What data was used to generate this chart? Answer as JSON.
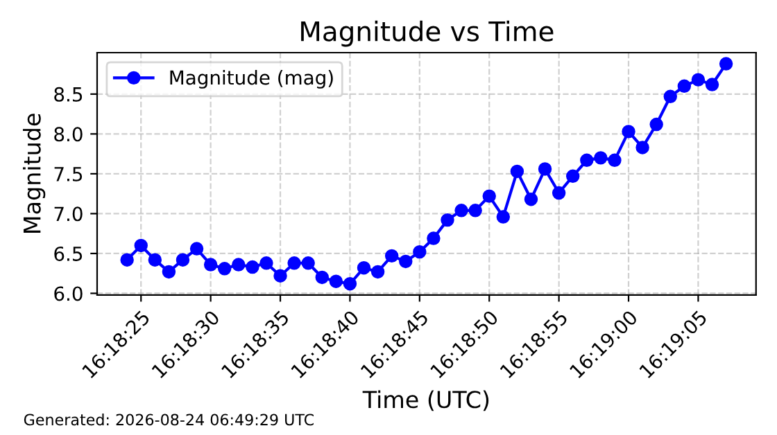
{
  "chart_data": {
    "type": "line",
    "title": "Magnitude vs Time",
    "xlabel": "Time (UTC)",
    "ylabel": "Magnitude",
    "x": [
      "2026-08-24T16:18:24",
      "2026-08-24T16:18:25",
      "2026-08-24T16:18:26",
      "2026-08-24T16:18:27",
      "2026-08-24T16:18:28",
      "2026-08-24T16:18:29",
      "2026-08-24T16:18:30",
      "2026-08-24T16:18:31",
      "2026-08-24T16:18:32",
      "2026-08-24T16:18:33",
      "2026-08-24T16:18:34",
      "2026-08-24T16:18:35",
      "2026-08-24T16:18:36",
      "2026-08-24T16:18:37",
      "2026-08-24T16:18:38",
      "2026-08-24T16:18:39",
      "2026-08-24T16:18:40",
      "2026-08-24T16:18:41",
      "2026-08-24T16:18:42",
      "2026-08-24T16:18:43",
      "2026-08-24T16:18:44",
      "2026-08-24T16:18:45",
      "2026-08-24T16:18:46",
      "2026-08-24T16:18:47",
      "2026-08-24T16:18:48",
      "2026-08-24T16:18:49",
      "2026-08-24T16:18:50",
      "2026-08-24T16:18:51",
      "2026-08-24T16:18:52",
      "2026-08-24T16:18:53",
      "2026-08-24T16:18:54",
      "2026-08-24T16:18:55",
      "2026-08-24T16:18:56",
      "2026-08-24T16:18:57",
      "2026-08-24T16:18:58",
      "2026-08-24T16:18:59",
      "2026-08-24T16:19:00",
      "2026-08-24T16:19:01",
      "2026-08-24T16:19:02",
      "2026-08-24T16:19:03",
      "2026-08-24T16:19:04",
      "2026-08-24T16:19:05",
      "2026-08-24T16:19:06",
      "2026-08-24T16:19:07"
    ],
    "series": [
      {
        "name": "Magnitude (mag)",
        "color": "#0000ff",
        "values": [
          6.42,
          6.6,
          6.42,
          6.27,
          6.42,
          6.56,
          6.36,
          6.31,
          6.36,
          6.33,
          6.38,
          6.22,
          6.38,
          6.38,
          6.2,
          6.15,
          6.12,
          6.32,
          6.27,
          6.47,
          6.4,
          6.52,
          6.69,
          6.92,
          7.04,
          7.04,
          7.22,
          6.96,
          7.53,
          7.18,
          7.56,
          7.26,
          7.47,
          7.67,
          7.7,
          7.67,
          8.03,
          7.83,
          8.12,
          8.47,
          8.6,
          8.68,
          8.62,
          8.88
        ]
      }
    ],
    "xlim": [
      "2026-08-24T16:18:21.85",
      "2026-08-24T16:19:09.15"
    ],
    "xticks": [
      {
        "value": "2026-08-24T16:18:25",
        "label": "16:18:25"
      },
      {
        "value": "2026-08-24T16:18:30",
        "label": "16:18:30"
      },
      {
        "value": "2026-08-24T16:18:35",
        "label": "16:18:35"
      },
      {
        "value": "2026-08-24T16:18:40",
        "label": "16:18:40"
      },
      {
        "value": "2026-08-24T16:18:45",
        "label": "16:18:45"
      },
      {
        "value": "2026-08-24T16:18:50",
        "label": "16:18:50"
      },
      {
        "value": "2026-08-24T16:18:55",
        "label": "16:18:55"
      },
      {
        "value": "2026-08-24T16:19:00",
        "label": "16:19:00"
      },
      {
        "value": "2026-08-24T16:19:05",
        "label": "16:19:05"
      }
    ],
    "ylim": [
      5.98,
      9.02
    ],
    "yticks": [
      {
        "value": 6.0,
        "label": "6.0"
      },
      {
        "value": 6.5,
        "label": "6.5"
      },
      {
        "value": 7.0,
        "label": "7.0"
      },
      {
        "value": 7.5,
        "label": "7.5"
      },
      {
        "value": 8.0,
        "label": "8.0"
      },
      {
        "value": 8.5,
        "label": "8.5"
      }
    ],
    "grid": true,
    "legend": "top left",
    "marker": "circle",
    "line_style": "solid",
    "annotations": [
      "Generated: 2026-08-24 06:49:29 UTC"
    ]
  }
}
